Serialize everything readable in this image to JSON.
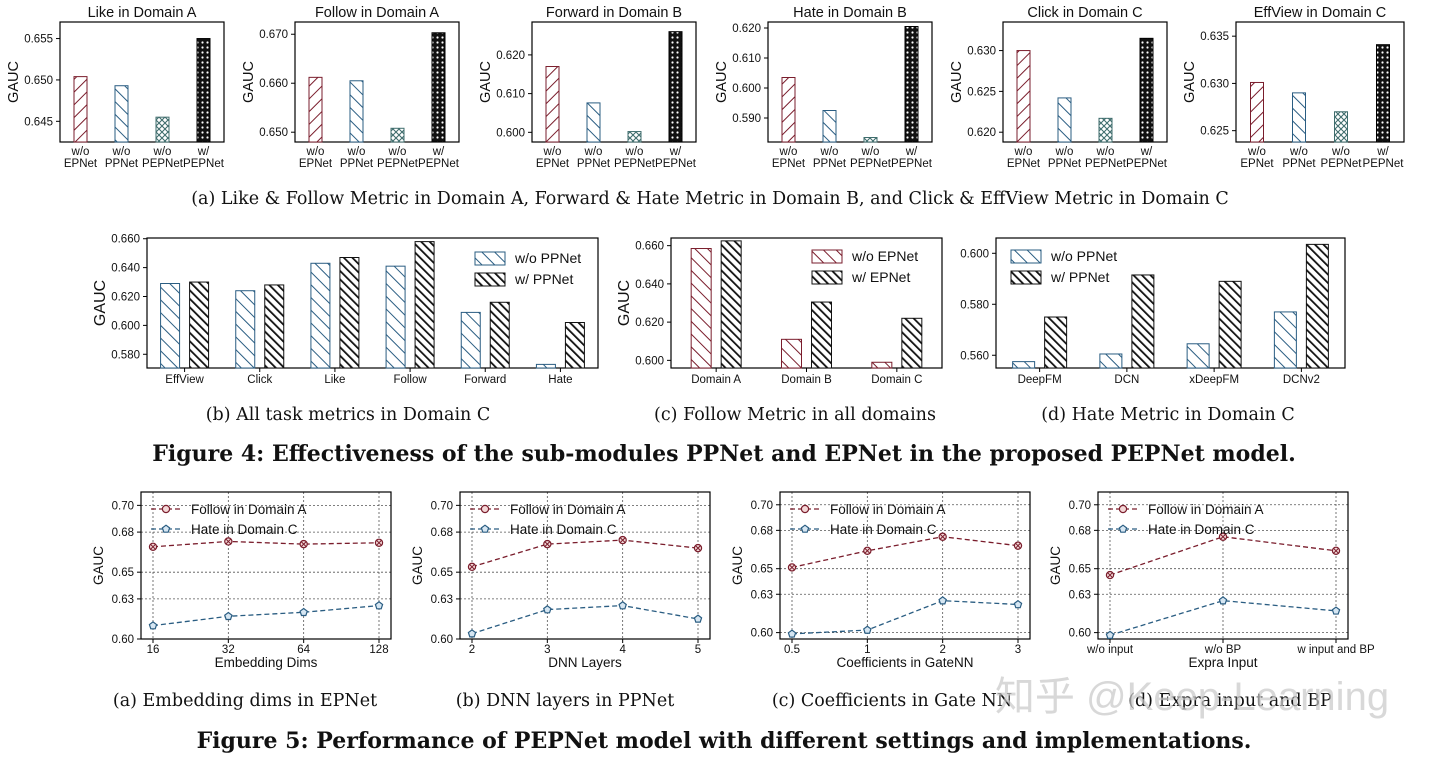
{
  "figure4": {
    "caption": "Figure 4: Effectiveness of the sub-modules PPNet and EPNet in the proposed PEPNet model.",
    "row1_caption": "(a)  Like & Follow Metric in Domain A, Forward & Hate Metric in Domain B, and Click & EffView Metric in Domain C",
    "captions": {
      "b": "(b)  All task metrics in Domain C",
      "c": "(c)  Follow Metric in all domains",
      "d": "(d)  Hate Metric in Domain C"
    }
  },
  "figure5": {
    "caption": "Figure 5: Performance of PEPNet model with different settings and implementations.",
    "captions": {
      "a": "(a)  Embedding dims in EPNet",
      "b": "(b)  DNN layers in PPNet",
      "c": "(c)  Coefficients in Gate NN",
      "d": "(d)  Expra input and BP"
    }
  },
  "watermark": "知乎 @Keep-Learning",
  "chart_data": [
    {
      "id": "a1",
      "type": "bar",
      "title": "Like in Domain A",
      "ylabel": "GAUC",
      "categories": [
        "w/o\nEPNet",
        "w/o\nPPNet",
        "w/o\nPEPNet",
        "w/\nPEPNet"
      ],
      "values": [
        0.6504,
        0.6493,
        0.6455,
        0.655
      ],
      "ylim": [
        0.6425,
        0.657
      ],
      "yticks": [
        0.645,
        0.65,
        0.655
      ],
      "tick_labels": [
        "0.645",
        "0.650",
        "0.655"
      ]
    },
    {
      "id": "a2",
      "type": "bar",
      "title": "Follow in Domain A",
      "ylabel": "GAUC",
      "categories": [
        "w/o\nEPNet",
        "w/o\nPPNet",
        "w/o\nPEPNet",
        "w/\nPEPNet"
      ],
      "values": [
        0.6612,
        0.6605,
        0.6508,
        0.6703
      ],
      "ylim": [
        0.648,
        0.6725
      ],
      "yticks": [
        0.65,
        0.66,
        0.67
      ],
      "tick_labels": [
        "0.650",
        "0.660",
        "0.670"
      ]
    },
    {
      "id": "a3",
      "type": "bar",
      "title": "Forward in Domain B",
      "ylabel": "GAUC",
      "categories": [
        "w/o\nEPNet",
        "w/o\nPPNet",
        "w/o\nPEPNet",
        "w/\nPEPNet"
      ],
      "values": [
        0.617,
        0.6076,
        0.6002,
        0.626
      ],
      "ylim": [
        0.5975,
        0.6285
      ],
      "yticks": [
        0.6,
        0.61,
        0.62
      ],
      "tick_labels": [
        "0.600",
        "0.610",
        "0.620"
      ]
    },
    {
      "id": "a4",
      "type": "bar",
      "title": "Hate in Domain B",
      "ylabel": "GAUC",
      "categories": [
        "w/o\nEPNet",
        "w/o\nPPNet",
        "w/o\nPEPNet",
        "w/\nPEPNet"
      ],
      "values": [
        0.6035,
        0.5925,
        0.5835,
        0.6205
      ],
      "ylim": [
        0.582,
        0.622
      ],
      "yticks": [
        0.59,
        0.6,
        0.61,
        0.62
      ],
      "tick_labels": [
        "0.590",
        "0.600",
        "0.610",
        "0.620"
      ]
    },
    {
      "id": "a5",
      "type": "bar",
      "title": "Click in Domain C",
      "ylabel": "GAUC",
      "categories": [
        "w/o\nEPNet",
        "w/o\nPPNet",
        "w/o\nPEPNet",
        "w/\nPEPNet"
      ],
      "values": [
        0.63,
        0.6242,
        0.6217,
        0.6315
      ],
      "ylim": [
        0.6188,
        0.6335
      ],
      "yticks": [
        0.62,
        0.625,
        0.63
      ],
      "tick_labels": [
        "0.620",
        "0.625",
        "0.630"
      ]
    },
    {
      "id": "a6",
      "type": "bar",
      "title": "EffView in Domain C",
      "ylabel": "GAUC",
      "categories": [
        "w/o\nEPNet",
        "w/o\nPPNet",
        "w/o\nPEPNet",
        "w/\nPEPNet"
      ],
      "values": [
        0.6301,
        0.629,
        0.627,
        0.6341
      ],
      "ylim": [
        0.6238,
        0.6365
      ],
      "yticks": [
        0.625,
        0.63,
        0.635
      ],
      "tick_labels": [
        "0.625",
        "0.630",
        "0.635"
      ]
    },
    {
      "id": "b",
      "type": "bar",
      "title": "",
      "ylabel": "GAUC",
      "categories": [
        "EffView",
        "Click",
        "Like",
        "Follow",
        "Forward",
        "Hate"
      ],
      "series": [
        {
          "name": "w/o PPNet",
          "values": [
            0.629,
            0.624,
            0.643,
            0.641,
            0.609,
            0.573
          ]
        },
        {
          "name": "w/ PPNet",
          "values": [
            0.63,
            0.628,
            0.647,
            0.658,
            0.616,
            0.602
          ]
        }
      ],
      "ylim": [
        0.5705,
        0.6605
      ],
      "yticks": [
        0.58,
        0.6,
        0.62,
        0.64,
        0.66
      ],
      "tick_labels": [
        "0.580",
        "0.600",
        "0.620",
        "0.640",
        "0.660"
      ],
      "legend": "top-right"
    },
    {
      "id": "c",
      "type": "bar",
      "title": "",
      "ylabel": "GAUC",
      "categories": [
        "Domain A",
        "Domain B",
        "Domain C"
      ],
      "series": [
        {
          "name": "w/o EPNet",
          "values": [
            0.6585,
            0.611,
            0.599
          ]
        },
        {
          "name": "w/ EPNet",
          "values": [
            0.6625,
            0.6305,
            0.622
          ]
        }
      ],
      "ylim": [
        0.596,
        0.664
      ],
      "yticks": [
        0.6,
        0.62,
        0.64,
        0.66
      ],
      "tick_labels": [
        "0.600",
        "0.620",
        "0.640",
        "0.660"
      ],
      "legend": "top-right"
    },
    {
      "id": "d",
      "type": "bar",
      "title": "",
      "ylabel": "",
      "categories": [
        "DeepFM",
        "DCN",
        "xDeepFM",
        "DCNv2"
      ],
      "series": [
        {
          "name": "w/o PPNet",
          "values": [
            0.5575,
            0.5605,
            0.5645,
            0.577
          ]
        },
        {
          "name": "w/ PPNet",
          "values": [
            0.575,
            0.5915,
            0.589,
            0.6035
          ]
        }
      ],
      "ylim": [
        0.555,
        0.606
      ],
      "yticks": [
        0.56,
        0.58,
        0.6
      ],
      "tick_labels": [
        "0.560",
        "0.580",
        "0.600"
      ],
      "legend": "top-left"
    },
    {
      "id": "e",
      "type": "line",
      "xlabel": "Embedding Dims",
      "ylabel": "GAUC",
      "x": [
        "16",
        "32",
        "64",
        "128"
      ],
      "series": [
        {
          "name": "Follow in Domain A",
          "values": [
            0.669,
            0.673,
            0.671,
            0.672
          ]
        },
        {
          "name": "Hate in Domain C",
          "values": [
            0.61,
            0.617,
            0.62,
            0.625
          ]
        }
      ],
      "ylim": [
        0.6,
        0.71
      ],
      "yticks": [
        0.6,
        0.63,
        0.65,
        0.68,
        0.7
      ],
      "tick_labels": [
        "0.60",
        "0.63",
        "0.65",
        "0.68",
        "0.70"
      ],
      "legend": "top-left"
    },
    {
      "id": "f",
      "type": "line",
      "xlabel": "DNN Layers",
      "ylabel": "GAUC",
      "x": [
        "2",
        "3",
        "4",
        "5"
      ],
      "series": [
        {
          "name": "Follow in Domain A",
          "values": [
            0.654,
            0.671,
            0.674,
            0.668
          ]
        },
        {
          "name": "Hate in Domain C",
          "values": [
            0.604,
            0.622,
            0.625,
            0.615
          ]
        }
      ],
      "ylim": [
        0.6,
        0.71
      ],
      "yticks": [
        0.6,
        0.63,
        0.65,
        0.68,
        0.7
      ],
      "tick_labels": [
        "0.60",
        "0.63",
        "0.65",
        "0.68",
        "0.70"
      ],
      "legend": "top-left"
    },
    {
      "id": "g",
      "type": "line",
      "xlabel": "Coefficients in GateNN",
      "ylabel": "GAUC",
      "x": [
        "0.5",
        "1",
        "2",
        "3"
      ],
      "series": [
        {
          "name": "Follow in Domain A",
          "values": [
            0.651,
            0.664,
            0.675,
            0.668
          ]
        },
        {
          "name": "Hate in Domain C",
          "values": [
            0.599,
            0.602,
            0.625,
            0.622
          ]
        }
      ],
      "ylim": [
        0.595,
        0.71
      ],
      "yticks": [
        0.6,
        0.63,
        0.65,
        0.68,
        0.7
      ],
      "tick_labels": [
        "0.60",
        "0.63",
        "0.65",
        "0.68",
        "0.70"
      ],
      "legend": "top-left"
    },
    {
      "id": "h",
      "type": "line",
      "xlabel": "Expra Input",
      "ylabel": "GAUC",
      "x": [
        "w/o input",
        "w/o BP",
        "w input and BP"
      ],
      "series": [
        {
          "name": "Follow in Domain A",
          "values": [
            0.645,
            0.675,
            0.664
          ]
        },
        {
          "name": "Hate in Domain C",
          "values": [
            0.598,
            0.625,
            0.617
          ]
        }
      ],
      "ylim": [
        0.595,
        0.71
      ],
      "yticks": [
        0.6,
        0.63,
        0.65,
        0.68,
        0.7
      ],
      "tick_labels": [
        "0.60",
        "0.63",
        "0.65",
        "0.68",
        "0.70"
      ],
      "legend": "top-left"
    }
  ]
}
